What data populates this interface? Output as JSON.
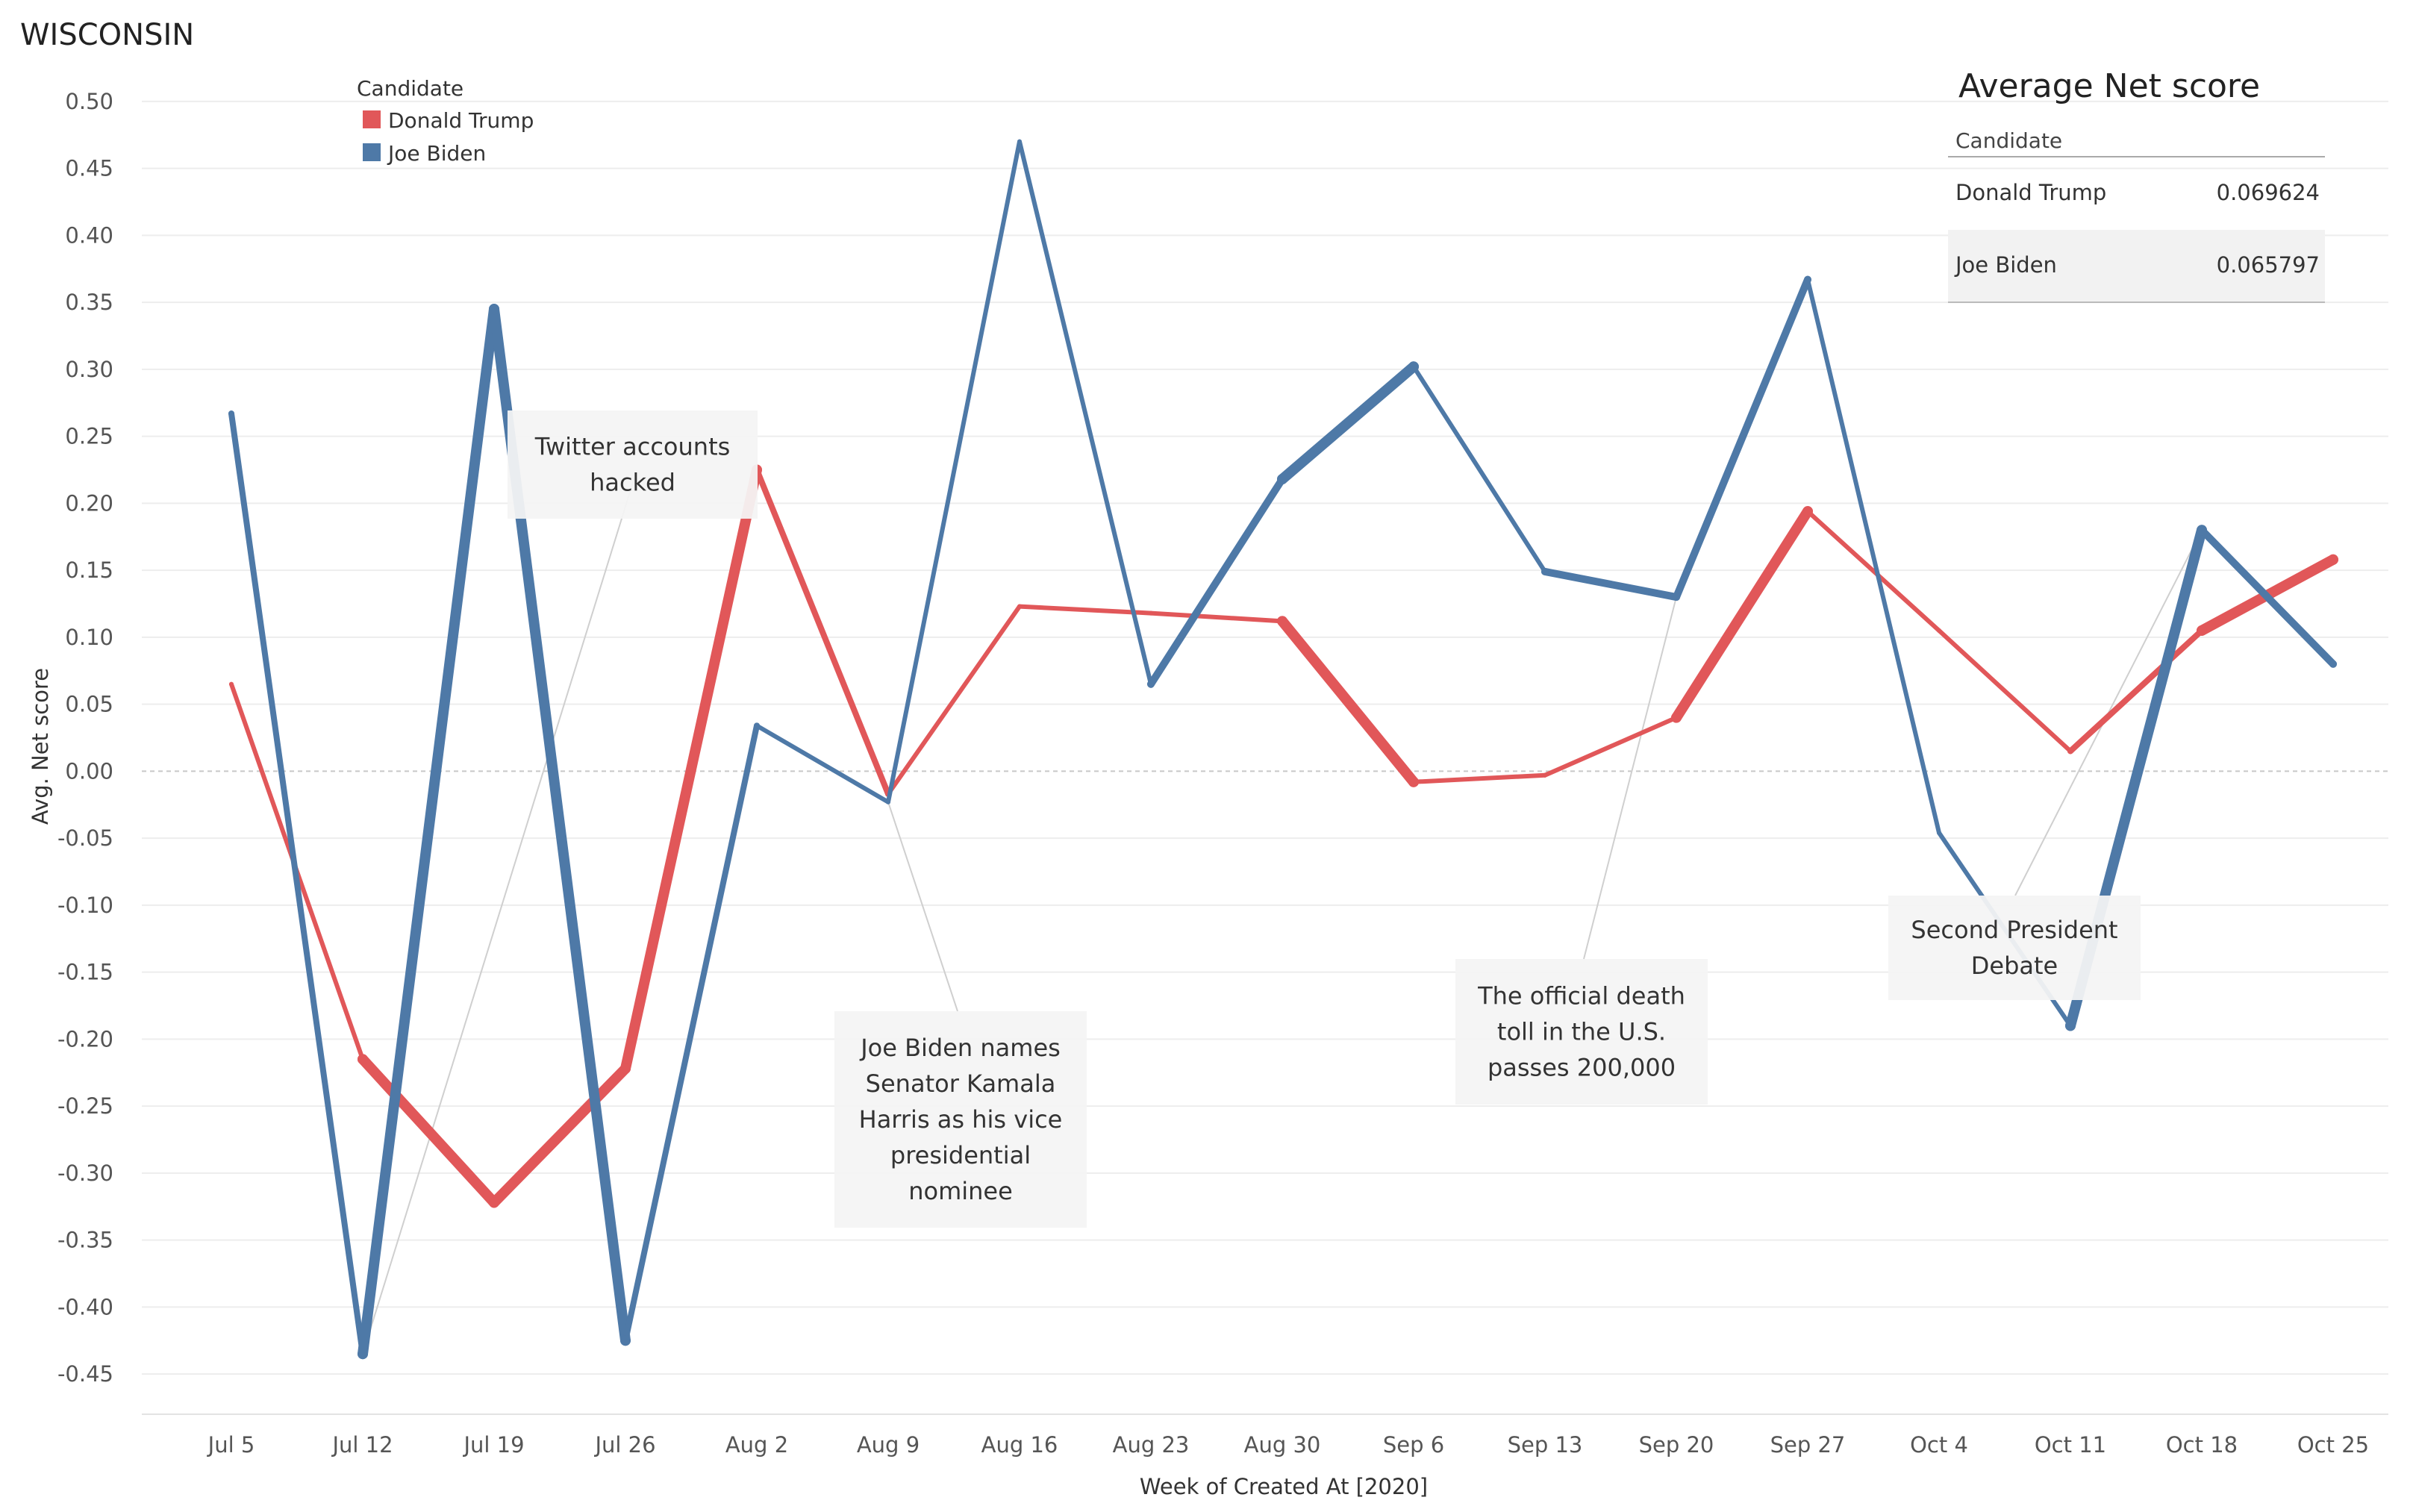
{
  "page_title": "WISCONSIN",
  "legend": {
    "title": "Candidate",
    "items": [
      {
        "label": "Donald Trump",
        "color": "#e15759"
      },
      {
        "label": "Joe Biden",
        "color": "#4e79a7"
      }
    ]
  },
  "summary_table": {
    "title": "Average Net score",
    "column_header": "Candidate",
    "rows": [
      {
        "candidate": "Donald Trump",
        "value": "0.069624"
      },
      {
        "candidate": "Joe Biden",
        "value": "0.065797"
      }
    ]
  },
  "chart_data": {
    "type": "line",
    "xlabel": "Week of Created At [2020]",
    "ylabel": "Avg. Net score",
    "categories": [
      "Jul 5",
      "Jul 12",
      "Jul 19",
      "Jul 26",
      "Aug 2",
      "Aug 9",
      "Aug 16",
      "Aug 23",
      "Aug 30",
      "Sep 6",
      "Sep 13",
      "Sep 20",
      "Sep 27",
      "Oct 4",
      "Oct 11",
      "Oct 18",
      "Oct 25"
    ],
    "ylim": [
      -0.48,
      0.52
    ],
    "yticks": [
      0.5,
      0.45,
      0.4,
      0.35,
      0.3,
      0.25,
      0.2,
      0.15,
      0.1,
      0.05,
      0.0,
      -0.05,
      -0.1,
      -0.15,
      -0.2,
      -0.25,
      -0.3,
      -0.35,
      -0.4,
      -0.45
    ],
    "ytick_labels": [
      "0.50",
      "0.45",
      "0.40",
      "0.35",
      "0.30",
      "0.25",
      "0.20",
      "0.15",
      "0.10",
      "0.05",
      "0.00",
      "-0.05",
      "-0.10",
      "-0.15",
      "-0.20",
      "-0.25",
      "-0.30",
      "-0.35",
      "-0.40",
      "-0.45"
    ],
    "series": [
      {
        "name": "Donald Trump",
        "color": "#e15759",
        "values": [
          0.065,
          -0.215,
          -0.322,
          -0.222,
          0.225,
          -0.017,
          0.123,
          0.118,
          0.112,
          -0.008,
          -0.003,
          0.04,
          0.194,
          0.105,
          0.015,
          0.105,
          0.158
        ],
        "weights": [
          6,
          14,
          14,
          14,
          8,
          6,
          6,
          6,
          14,
          6,
          6,
          14,
          6,
          6,
          8,
          14
        ]
      },
      {
        "name": "Joe Biden",
        "color": "#4e79a7",
        "values": [
          0.267,
          -0.435,
          0.345,
          -0.425,
          0.034,
          -0.023,
          0.47,
          0.065,
          0.218,
          0.302,
          0.149,
          0.13,
          0.367,
          -0.046,
          -0.19,
          0.18,
          0.08
        ],
        "weights": [
          8,
          14,
          14,
          8,
          6,
          6,
          6,
          10,
          14,
          6,
          10,
          10,
          6,
          6,
          14,
          10
        ]
      }
    ],
    "annotations": [
      {
        "lines": [
          "Twitter accounts",
          "hacked"
        ],
        "target": {
          "series": 1,
          "index": 1
        }
      },
      {
        "lines": [
          "Joe Biden names",
          "Senator Kamala",
          "Harris as his vice",
          "presidential",
          "nominee"
        ],
        "target": {
          "series": 1,
          "index": 5
        }
      },
      {
        "lines": [
          "The official death",
          "toll in the U.S.",
          "passes 200,000"
        ],
        "target": {
          "series": 1,
          "index": 11
        }
      },
      {
        "lines": [
          "Second President",
          "Debate"
        ],
        "target": {
          "series": 1,
          "index": 15
        }
      }
    ]
  }
}
